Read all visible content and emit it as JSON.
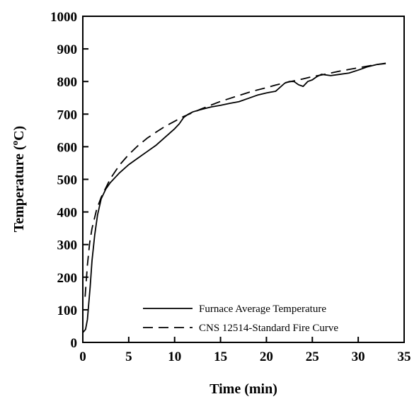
{
  "chart_data": {
    "type": "line",
    "xlabel": "Time (min)",
    "ylabel_main": "Temperature (",
    "ylabel_sup": "o",
    "ylabel_end": "C)",
    "xlim": [
      0,
      35
    ],
    "ylim": [
      0,
      1000
    ],
    "xticks": [
      0,
      5,
      10,
      15,
      20,
      25,
      30,
      35
    ],
    "yticks": [
      0,
      100,
      200,
      300,
      400,
      500,
      600,
      700,
      800,
      900,
      1000
    ],
    "grid": false,
    "legend_position": "bottom-right",
    "series": [
      {
        "name": "Furnace Average Temperature",
        "style": "solid",
        "color": "#000000",
        "x": [
          0,
          0.3,
          0.5,
          0.8,
          1.0,
          1.3,
          1.6,
          2.0,
          2.5,
          3.0,
          3.5,
          4.0,
          5.0,
          6.0,
          7.0,
          8.0,
          9.0,
          10.0,
          10.5,
          11.0,
          11.5,
          12.0,
          13.0,
          14.0,
          15.0,
          16.0,
          17.0,
          18.0,
          19.0,
          20.0,
          21.0,
          22.0,
          22.5,
          23.0,
          23.5,
          24.0,
          24.5,
          25.0,
          25.5,
          26.0,
          27.0,
          28.0,
          29.0,
          30.0,
          31.0,
          32.0,
          33.0
        ],
        "y": [
          30,
          40,
          70,
          170,
          250,
          330,
          390,
          440,
          470,
          490,
          505,
          520,
          545,
          565,
          585,
          605,
          630,
          655,
          670,
          690,
          700,
          707,
          715,
          722,
          727,
          733,
          738,
          748,
          758,
          765,
          770,
          795,
          800,
          800,
          790,
          785,
          800,
          805,
          815,
          822,
          818,
          822,
          826,
          835,
          845,
          852,
          855
        ]
      },
      {
        "name": "CNS 12514-Standard Fire Curve",
        "style": "dashed",
        "color": "#000000",
        "x": [
          0.25,
          0.5,
          0.75,
          1,
          1.5,
          2,
          3,
          4,
          5,
          6,
          7,
          8,
          9,
          10,
          11,
          12,
          13,
          14,
          15,
          16,
          17,
          18,
          19,
          20,
          21,
          22,
          23,
          24,
          25,
          26,
          27,
          28,
          29,
          30,
          31,
          32,
          33
        ],
        "y": [
          140,
          237,
          306,
          349,
          407,
          445,
          502,
          544,
          576,
          603,
          626,
          645,
          663,
          678,
          693,
          705,
          717,
          728,
          739,
          748,
          757,
          766,
          774,
          781,
          789,
          796,
          802,
          808,
          815,
          820,
          826,
          832,
          837,
          842,
          847,
          852,
          856
        ]
      }
    ]
  }
}
